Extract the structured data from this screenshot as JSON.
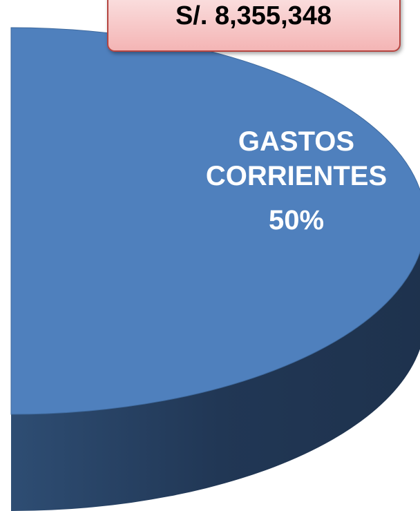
{
  "chart_data": {
    "type": "pie",
    "categories": [
      "GASTOS CORRIENTES"
    ],
    "values": [
      50
    ],
    "value_labels": [
      "50%"
    ],
    "colors": [
      "#4f80bd"
    ],
    "annotation": "S/. 8,355,348"
  }
}
